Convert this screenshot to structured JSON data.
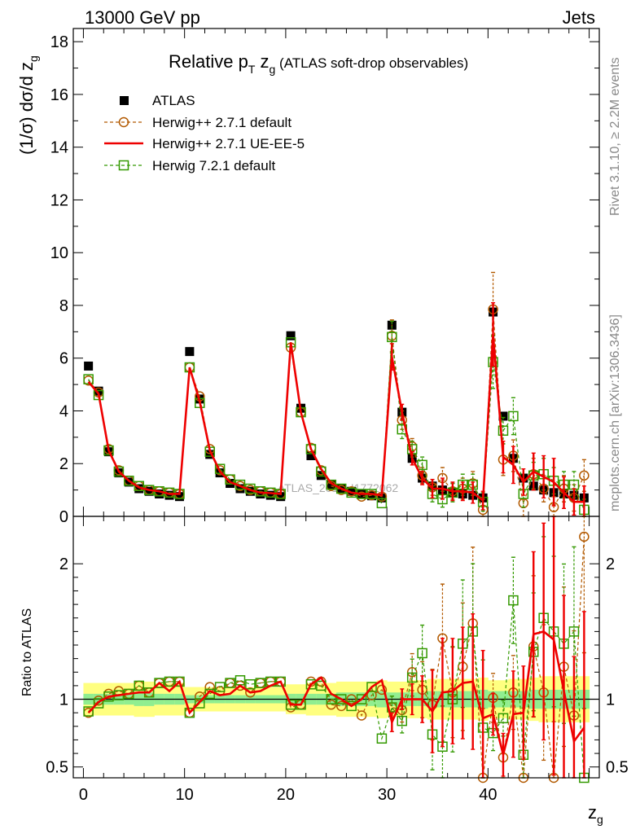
{
  "header": {
    "left": "13000 GeV pp",
    "right": "Jets"
  },
  "side_labels": {
    "rivet": "Rivet 3.1.10, ≥ 2.2M events",
    "mcplots": "mcplots.cern.ch [arXiv:1306.3436]"
  },
  "watermark": "ATLAS_2019_I1772062",
  "title": {
    "main": "Relative p",
    "sub1": "T",
    "mid": " z",
    "sub2": "g",
    "paren": " (ATLAS soft-drop observables)"
  },
  "y_main_label": "(1/σ) dσ/d z",
  "y_main_label_sub": "g",
  "y_ratio_label": "Ratio to ATLAS",
  "x_label": "z",
  "x_label_sub": "g",
  "legend": [
    {
      "key": "atlas",
      "label": "ATLAS"
    },
    {
      "key": "h271",
      "label": "Herwig++ 2.7.1 default"
    },
    {
      "key": "ueee5",
      "label": "Herwig++ 2.7.1 UE-EE-5"
    },
    {
      "key": "h721",
      "label": "Herwig 7.2.1 default"
    }
  ],
  "colors": {
    "atlas": "#000000",
    "h271": "#b25900",
    "ueee5": "#ee0000",
    "h721": "#339900",
    "band_inner": "#90ee90",
    "band_outer": "#ffff80"
  },
  "chart_data": {
    "type": "scatter",
    "x": [
      0.5,
      1.5,
      2.5,
      3.5,
      4.5,
      5.5,
      6.5,
      7.5,
      8.5,
      9.5,
      10.5,
      11.5,
      12.5,
      13.5,
      14.5,
      15.5,
      16.5,
      17.5,
      18.5,
      19.5,
      20.5,
      21.5,
      22.5,
      23.5,
      24.5,
      25.5,
      26.5,
      27.5,
      28.5,
      29.5,
      30.5,
      31.5,
      32.5,
      33.5,
      34.5,
      35.5,
      36.5,
      37.5,
      38.5,
      39.5,
      40.5,
      41.5,
      42.5,
      43.5,
      44.5,
      45.5,
      46.5,
      47.5,
      48.5,
      49.5
    ],
    "xlim": [
      -1,
      51
    ],
    "main": {
      "ylim": [
        0,
        18.5
      ],
      "yticks": [
        0,
        2,
        4,
        6,
        8,
        10,
        12,
        14,
        16,
        18
      ],
      "xticks": [
        0,
        10,
        20,
        30,
        40
      ],
      "series": [
        {
          "key": "atlas",
          "name": "ATLAS",
          "values": [
            5.7,
            4.75,
            2.45,
            1.65,
            1.3,
            1.05,
            0.95,
            0.85,
            0.8,
            0.75,
            6.25,
            4.45,
            2.35,
            1.65,
            1.25,
            1.05,
            0.95,
            0.85,
            0.8,
            0.75,
            6.85,
            4.1,
            2.3,
            1.55,
            1.2,
            1.05,
            0.95,
            0.85,
            0.78,
            0.7,
            7.25,
            3.95,
            2.2,
            1.45,
            1.15,
            1.0,
            0.9,
            0.85,
            0.8,
            0.7,
            7.75,
            3.8,
            2.2,
            1.45,
            1.15,
            1.0,
            0.9,
            0.85,
            0.8,
            0.7
          ]
        },
        {
          "key": "h271",
          "name": "Herwig++ 2.7.1 default",
          "values": [
            5.15,
            4.7,
            2.55,
            1.75,
            1.35,
            1.15,
            1.0,
            0.95,
            0.9,
            0.85,
            5.65,
            4.55,
            2.55,
            1.75,
            1.4,
            1.15,
            1.0,
            0.95,
            0.9,
            0.85,
            6.4,
            3.95,
            2.6,
            1.75,
            1.15,
            1.0,
            0.95,
            0.75,
            0.8,
            0.75,
            6.85,
            3.65,
            2.65,
            1.55,
            1.1,
            1.45,
            0.95,
            1.05,
            1.25,
            0.25,
            7.85,
            2.15,
            2.3,
            0.5,
            1.6,
            1.05,
            0.35,
            1.05,
            0.7,
            1.55
          ]
        },
        {
          "key": "ueee5",
          "name": "Herwig++ 2.7.1 UE-EE-5",
          "values": [
            5.1,
            4.65,
            2.5,
            1.7,
            1.35,
            1.1,
            1.0,
            0.95,
            0.85,
            0.85,
            5.65,
            4.35,
            2.5,
            1.7,
            1.3,
            1.15,
            1.0,
            0.9,
            0.88,
            0.85,
            6.6,
            3.95,
            2.55,
            1.8,
            1.25,
            1.05,
            0.9,
            0.85,
            0.85,
            0.8,
            6.05,
            3.95,
            2.2,
            1.45,
            1.05,
            1.05,
            0.95,
            0.95,
            0.9,
            0.6,
            6.9,
            2.25,
            1.95,
            1.3,
            1.7,
            1.5,
            1.3,
            0.9,
            0.55,
            0.55
          ]
        },
        {
          "key": "h721",
          "name": "Herwig 7.2.1 default",
          "values": [
            5.2,
            4.6,
            2.5,
            1.7,
            1.35,
            1.15,
            1.0,
            0.95,
            0.9,
            0.85,
            5.65,
            4.3,
            2.45,
            1.8,
            1.4,
            1.2,
            1.05,
            0.95,
            0.9,
            0.85,
            6.6,
            3.95,
            2.55,
            1.7,
            1.2,
            1.05,
            0.9,
            0.85,
            0.85,
            0.5,
            6.8,
            3.3,
            2.55,
            1.95,
            0.85,
            0.65,
            0.9,
            1.2,
            1.2,
            0.55,
            5.85,
            3.25,
            3.8,
            0.85,
            1.55,
            1.6,
            1.35,
            1.2,
            1.2,
            0.25
          ]
        }
      ],
      "errors": {
        "h271": [
          0,
          0,
          0,
          0,
          0,
          0,
          0,
          0,
          0,
          0,
          0,
          0,
          0,
          0,
          0,
          0,
          0,
          0,
          0,
          0,
          0,
          0,
          0,
          0,
          0,
          0,
          0,
          0,
          0,
          0,
          0.6,
          0.35,
          0.3,
          0.3,
          0.3,
          0.4,
          0.3,
          0.4,
          0.45,
          0.4,
          1.4,
          0.6,
          0.6,
          0.5,
          0.6,
          0.5,
          0.4,
          0.5,
          0.5,
          0.6
        ],
        "ueee5": [
          0,
          0,
          0,
          0,
          0,
          0,
          0,
          0,
          0,
          0,
          0,
          0,
          0,
          0,
          0,
          0,
          0,
          0,
          0,
          0,
          0,
          0,
          0,
          0,
          0,
          0,
          0,
          0,
          0,
          0,
          0.5,
          0.3,
          0.25,
          0.25,
          0.35,
          0.4,
          0.35,
          0.35,
          0.4,
          0.35,
          1.2,
          0.6,
          0.7,
          0.5,
          0.7,
          0.8,
          0.9,
          0.6,
          0.5,
          0.6
        ],
        "h721": [
          0,
          0,
          0,
          0,
          0,
          0,
          0,
          0,
          0,
          0,
          0,
          0,
          0,
          0,
          0,
          0,
          0,
          0,
          0,
          0,
          0,
          0,
          0,
          0,
          0,
          0,
          0,
          0,
          0,
          0,
          0.6,
          0.35,
          0.3,
          0.3,
          0.3,
          0.3,
          0.35,
          0.4,
          0.4,
          0.35,
          1.0,
          0.5,
          0.7,
          0.5,
          0.5,
          0.6,
          0.5,
          0.5,
          0.5,
          0.4
        ]
      }
    },
    "ratio": {
      "ylim": [
        0.42,
        2.35
      ],
      "yticks": [
        0.5,
        1,
        2
      ],
      "band_inner": [
        0.04,
        0.04,
        0.04,
        0.04,
        0.04,
        0.05,
        0.05,
        0.04,
        0.04,
        0.04,
        0.03,
        0.03,
        0.03,
        0.03,
        0.03,
        0.03,
        0.03,
        0.03,
        0.03,
        0.03,
        0.04,
        0.04,
        0.04,
        0.04,
        0.04,
        0.05,
        0.05,
        0.05,
        0.05,
        0.06,
        0.05,
        0.05,
        0.05,
        0.05,
        0.06,
        0.06,
        0.06,
        0.06,
        0.06,
        0.07,
        0.06,
        0.06,
        0.06,
        0.06,
        0.07,
        0.07,
        0.07,
        0.07,
        0.07,
        0.07
      ],
      "band_outer": [
        0.12,
        0.12,
        0.12,
        0.12,
        0.12,
        0.13,
        0.13,
        0.12,
        0.12,
        0.12,
        0.09,
        0.09,
        0.09,
        0.09,
        0.09,
        0.09,
        0.09,
        0.09,
        0.09,
        0.09,
        0.11,
        0.11,
        0.12,
        0.12,
        0.12,
        0.13,
        0.13,
        0.13,
        0.13,
        0.14,
        0.13,
        0.13,
        0.14,
        0.14,
        0.15,
        0.15,
        0.15,
        0.15,
        0.15,
        0.16,
        0.14,
        0.14,
        0.15,
        0.15,
        0.16,
        0.17,
        0.17,
        0.17,
        0.17,
        0.17
      ],
      "series": [
        {
          "key": "h271",
          "values": [
            0.9,
            0.99,
            1.04,
            1.06,
            1.04,
            1.1,
            1.05,
            1.12,
            1.13,
            1.13,
            0.9,
            1.02,
            1.09,
            1.06,
            1.12,
            1.1,
            1.05,
            1.12,
            1.13,
            1.13,
            0.94,
            0.96,
            1.13,
            1.13,
            0.96,
            0.95,
            1.0,
            0.88,
            1.03,
            1.07,
            0.94,
            0.92,
            1.2,
            1.07,
            0.96,
            1.45,
            1.05,
            1.24,
            1.56,
            0.36,
            1.01,
            0.57,
            1.05,
            0.34,
            1.39,
            1.05,
            0.39,
            1.24,
            0.88,
            2.2
          ]
        },
        {
          "key": "ueee5",
          "values": [
            0.9,
            0.98,
            1.02,
            1.03,
            1.04,
            1.05,
            1.05,
            1.12,
            1.06,
            1.13,
            0.9,
            0.98,
            1.06,
            1.03,
            1.04,
            1.1,
            1.05,
            1.06,
            1.1,
            1.13,
            0.96,
            0.96,
            1.11,
            1.16,
            1.04,
            1.0,
            0.95,
            1.0,
            1.09,
            1.14,
            0.83,
            1.0,
            1.0,
            1.0,
            0.91,
            1.05,
            1.06,
            1.12,
            1.13,
            0.86,
            0.89,
            0.59,
            0.89,
            0.9,
            1.48,
            1.5,
            1.44,
            1.06,
            0.69,
            0.79
          ]
        },
        {
          "key": "h721",
          "values": [
            0.91,
            0.97,
            1.02,
            1.03,
            1.04,
            1.1,
            1.05,
            1.12,
            1.13,
            1.13,
            0.9,
            0.97,
            1.04,
            1.09,
            1.12,
            1.14,
            1.11,
            1.12,
            1.13,
            1.13,
            0.96,
            0.96,
            1.11,
            1.1,
            1.0,
            1.0,
            0.95,
            1.0,
            1.09,
            0.71,
            0.94,
            0.84,
            1.16,
            1.34,
            0.74,
            0.65,
            1.0,
            1.41,
            1.5,
            0.79,
            0.75,
            0.86,
            1.73,
            0.59,
            1.35,
            1.6,
            1.5,
            1.41,
            1.5,
            0.36
          ]
        }
      ]
    }
  }
}
